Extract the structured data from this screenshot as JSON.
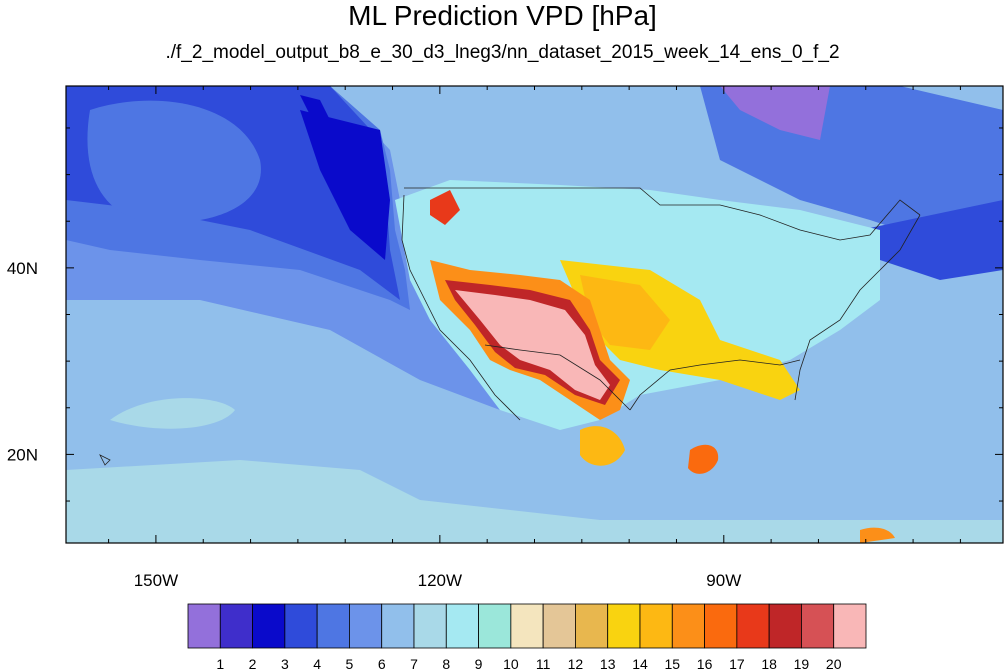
{
  "title": "ML Prediction VPD [hPa]",
  "subtitle": "./f_2_model_output_b8_e_30_d3_lneg3/nn_dataset_2015_week_14_ens_0_f_2",
  "map": {
    "lon_labels": [
      "150W",
      "120W",
      "90W"
    ],
    "lat_labels": [
      "40N",
      "20N"
    ],
    "lon_range": [
      -159.5,
      -60.5
    ],
    "lat_range": [
      10.5,
      59.5
    ]
  },
  "colorbar": {
    "labels": [
      "1",
      "2",
      "3",
      "4",
      "5",
      "6",
      "7",
      "8",
      "9",
      "10",
      "11",
      "12",
      "13",
      "14",
      "15",
      "16",
      "17",
      "18",
      "19",
      "20"
    ],
    "colors": [
      "#9370DB",
      "#3F2ECB",
      "#0A0ACB",
      "#2F4BDA",
      "#4E76E3",
      "#6C93EA",
      "#91BFEB",
      "#A9D9E8",
      "#A5E9F2",
      "#9BE7DA",
      "#F4E5BE",
      "#E4C697",
      "#E8B74E",
      "#F9D310",
      "#FDB813",
      "#FC8F18",
      "#FA6A0E",
      "#E8391A",
      "#BF2628",
      "#D65155",
      "#F9B7B7"
    ]
  }
}
